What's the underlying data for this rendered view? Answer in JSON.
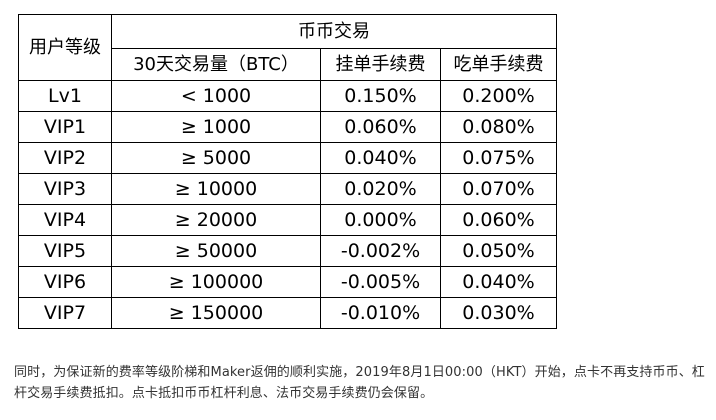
{
  "table": {
    "header": {
      "level": "用户等级",
      "group": "币币交易",
      "volume": "30天交易量（BTC）",
      "maker": "挂单手续费",
      "taker": "吃单手续费"
    },
    "rows": [
      {
        "level": "Lv1",
        "volume": "< 1000",
        "maker": "0.150%",
        "taker": "0.200%"
      },
      {
        "level": "VIP1",
        "volume": "≥ 1000",
        "maker": "0.060%",
        "taker": "0.080%"
      },
      {
        "level": "VIP2",
        "volume": "≥ 5000",
        "maker": "0.040%",
        "taker": "0.075%"
      },
      {
        "level": "VIP3",
        "volume": "≥ 10000",
        "maker": "0.020%",
        "taker": "0.070%"
      },
      {
        "level": "VIP4",
        "volume": "≥ 20000",
        "maker": "0.000%",
        "taker": "0.060%"
      },
      {
        "level": "VIP5",
        "volume": "≥ 50000",
        "maker": "-0.002%",
        "taker": "0.050%"
      },
      {
        "level": "VIP6",
        "volume": "≥ 100000",
        "maker": "-0.005%",
        "taker": "0.040%"
      },
      {
        "level": "VIP7",
        "volume": "≥ 150000",
        "maker": "-0.010%",
        "taker": "0.030%"
      }
    ]
  },
  "note": "同时，为保证新的费率等级阶梯和Maker返佣的顺利实施，2019年8月1日00:00（HKT）开始，点卡不再支持币币、杠杆交易手续费抵扣。点卡抵扣币币杠杆利息、法币交易手续费仍会保留。"
}
